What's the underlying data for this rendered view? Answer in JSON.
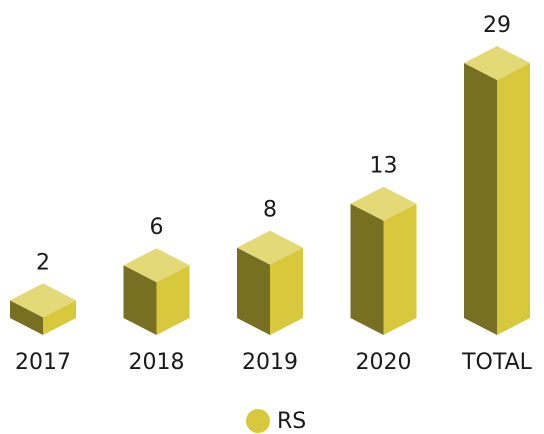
{
  "chart_data": {
    "type": "bar",
    "categories": [
      "2017",
      "2018",
      "2019",
      "2020",
      "TOTAL"
    ],
    "series": [
      {
        "name": "RS",
        "color": "#d8c93c",
        "values": [
          2,
          6,
          8,
          13,
          29
        ]
      }
    ]
  }
}
